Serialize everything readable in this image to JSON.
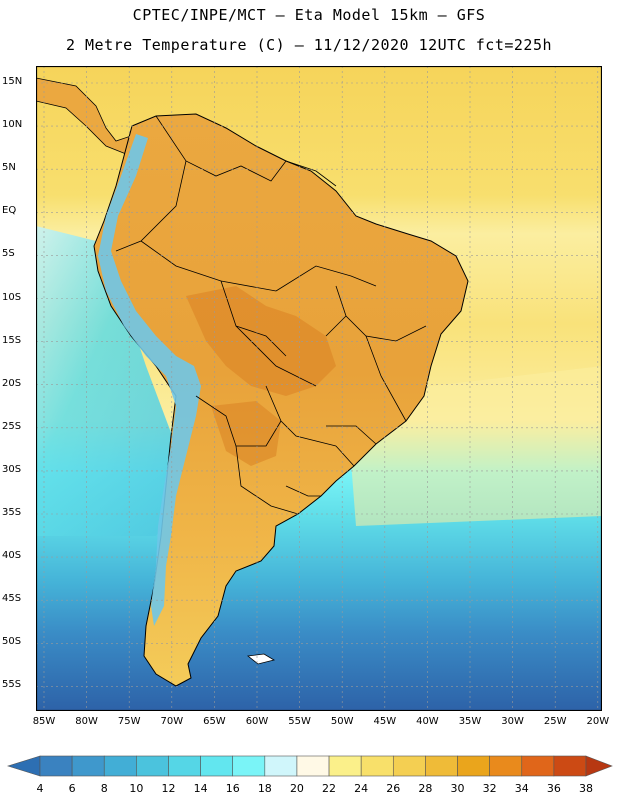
{
  "header": {
    "line1": "CPTEC/INPE/MCT –  Eta Model 15km – GFS",
    "line2": "2 Metre Temperature (C) – 11/12/2020 12UTC fct=225h"
  },
  "map": {
    "lat_labels": [
      "15N",
      "10N",
      "5N",
      "EQ",
      "5S",
      "10S",
      "15S",
      "20S",
      "25S",
      "30S",
      "35S",
      "40S",
      "45S",
      "50S",
      "55S"
    ],
    "lon_labels": [
      "85W",
      "80W",
      "75W",
      "70W",
      "65W",
      "60W",
      "55W",
      "50W",
      "45W",
      "40W",
      "35W",
      "30W",
      "25W",
      "20W"
    ],
    "colors": {
      "ocean_tropical": "#f6d45a",
      "ocean_mid": "#5fdde8",
      "ocean_cold": "#2f6db0",
      "land_hot": "#e8a23a",
      "land_warm": "#f2c04a",
      "mountains": "#6fc7e8"
    }
  },
  "colorbar": {
    "labels": [
      "4",
      "6",
      "8",
      "10",
      "12",
      "14",
      "16",
      "18",
      "20",
      "22",
      "24",
      "26",
      "28",
      "30",
      "32",
      "34",
      "36",
      "38"
    ],
    "colors": [
      "#2d6fb3",
      "#3a82c0",
      "#3f98cc",
      "#42aed6",
      "#4bc3dd",
      "#55d6e6",
      "#62e6ef",
      "#7af4f7",
      "#d0f6fb",
      "#fff9e6",
      "#fbf08a",
      "#f8e06a",
      "#f4cf52",
      "#efbb38",
      "#eaa51c",
      "#e98a1c",
      "#e0661a",
      "#cc4a14",
      "#b73812"
    ]
  }
}
